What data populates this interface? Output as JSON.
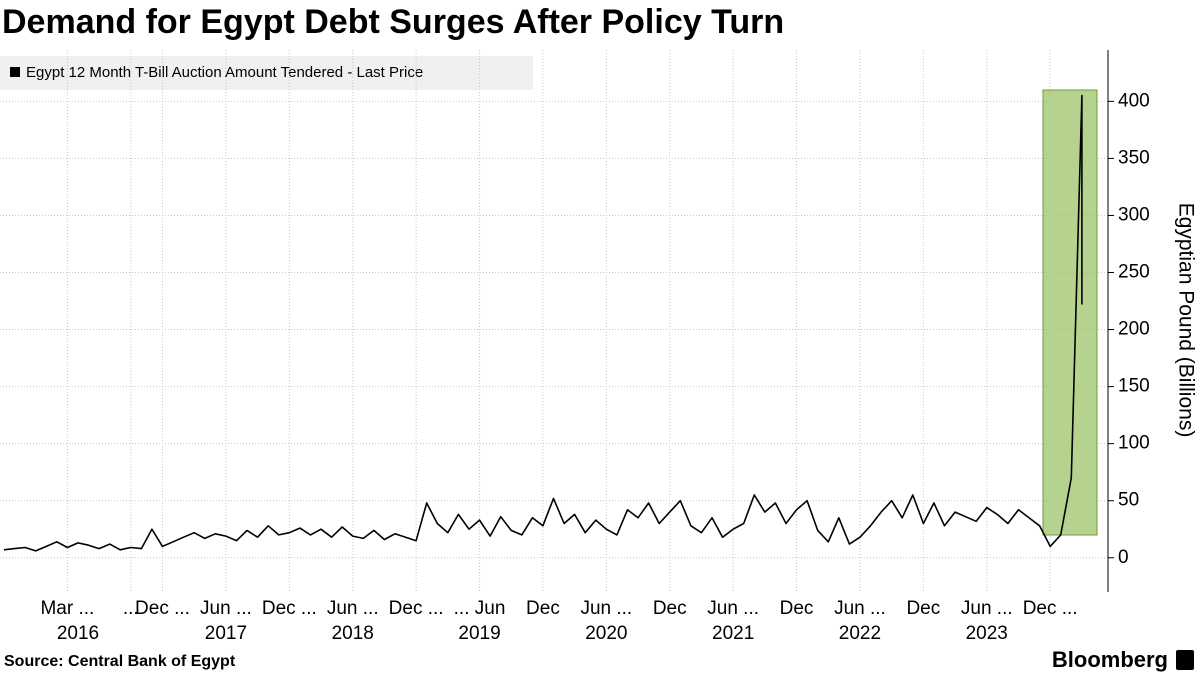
{
  "chart_data": {
    "type": "line",
    "title": "Demand for Egypt Debt Surges After Policy Turn",
    "y_label": "Egyptian Pound (Billions)",
    "source": "Source:  Central Bank of Egypt",
    "brand": "Bloomberg",
    "x": [
      "2015-09",
      "2015-10",
      "2015-11",
      "2015-12",
      "2016-01",
      "2016-02",
      "2016-03",
      "2016-04",
      "2016-05",
      "2016-06",
      "2016-07",
      "2016-08",
      "2016-09",
      "2016-10",
      "2016-11",
      "2016-12",
      "2017-01",
      "2017-02",
      "2017-03",
      "2017-04",
      "2017-05",
      "2017-06",
      "2017-07",
      "2017-08",
      "2017-09",
      "2017-10",
      "2017-11",
      "2017-12",
      "2018-01",
      "2018-02",
      "2018-03",
      "2018-04",
      "2018-05",
      "2018-06",
      "2018-07",
      "2018-08",
      "2018-09",
      "2018-10",
      "2018-11",
      "2018-12",
      "2019-01",
      "2019-02",
      "2019-03",
      "2019-04",
      "2019-05",
      "2019-06",
      "2019-07",
      "2019-08",
      "2019-09",
      "2019-10",
      "2019-11",
      "2019-12",
      "2020-01",
      "2020-02",
      "2020-03",
      "2020-04",
      "2020-05",
      "2020-06",
      "2020-07",
      "2020-08",
      "2020-09",
      "2020-10",
      "2020-11",
      "2020-12",
      "2021-01",
      "2021-02",
      "2021-03",
      "2021-04",
      "2021-05",
      "2021-06",
      "2021-07",
      "2021-08",
      "2021-09",
      "2021-10",
      "2021-11",
      "2021-12",
      "2022-01",
      "2022-02",
      "2022-03",
      "2022-04",
      "2022-05",
      "2022-06",
      "2022-07",
      "2022-08",
      "2022-09",
      "2022-10",
      "2022-11",
      "2022-12",
      "2023-01",
      "2023-02",
      "2023-03",
      "2023-04",
      "2023-05",
      "2023-06",
      "2023-07",
      "2023-08",
      "2023-09",
      "2023-10",
      "2023-11",
      "2023-12",
      "2024-01",
      "2024-02",
      "2024-03",
      "2024-03"
    ],
    "series": [
      {
        "name": "Egypt 12 Month T-Bill Auction Amount Tendered - Last Price",
        "color": "#000000",
        "values": [
          7,
          8,
          9,
          6,
          10,
          14,
          9,
          13,
          11,
          8,
          12,
          7,
          9,
          8,
          25,
          10,
          14,
          18,
          22,
          17,
          21,
          19,
          15,
          24,
          18,
          28,
          20,
          22,
          26,
          20,
          25,
          18,
          27,
          19,
          17,
          24,
          16,
          21,
          18,
          15,
          48,
          30,
          22,
          38,
          25,
          33,
          19,
          36,
          24,
          20,
          35,
          28,
          52,
          30,
          38,
          22,
          33,
          25,
          20,
          42,
          35,
          48,
          30,
          40,
          50,
          28,
          22,
          35,
          18,
          25,
          30,
          55,
          40,
          48,
          30,
          42,
          50,
          24,
          14,
          35,
          12,
          18,
          28,
          40,
          50,
          35,
          55,
          30,
          48,
          28,
          40,
          36,
          32,
          44,
          38,
          30,
          42,
          35,
          28,
          10,
          20,
          70,
          405,
          222
        ]
      }
    ],
    "xlim": [
      "2015-09",
      "2024-05"
    ],
    "xticks": [
      {
        "value": "2016-03",
        "label": "Mar ..."
      },
      {
        "value": "2016-09",
        "label": "..."
      },
      {
        "value": "2016-12",
        "label": "Dec ..."
      },
      {
        "value": "2017-06",
        "label": "Jun ..."
      },
      {
        "value": "2017-12",
        "label": "Dec ..."
      },
      {
        "value": "2018-06",
        "label": "Jun ..."
      },
      {
        "value": "2018-12",
        "label": "Dec ..."
      },
      {
        "value": "2019-06",
        "label": "... Jun"
      },
      {
        "value": "2019-12",
        "label": "Dec"
      },
      {
        "value": "2020-06",
        "label": "Jun ..."
      },
      {
        "value": "2020-12",
        "label": "Dec"
      },
      {
        "value": "2021-06",
        "label": "Jun ..."
      },
      {
        "value": "2021-12",
        "label": "Dec"
      },
      {
        "value": "2022-06",
        "label": "Jun ..."
      },
      {
        "value": "2022-12",
        "label": "Dec"
      },
      {
        "value": "2023-06",
        "label": "Jun ..."
      },
      {
        "value": "2023-12",
        "label": "Dec ..."
      }
    ],
    "x_groups": [
      {
        "value": "2016-04",
        "label": "2016"
      },
      {
        "value": "2017-06",
        "label": "2017"
      },
      {
        "value": "2018-06",
        "label": "2018"
      },
      {
        "value": "2019-06",
        "label": "2019"
      },
      {
        "value": "2020-06",
        "label": "2020"
      },
      {
        "value": "2021-06",
        "label": "2021"
      },
      {
        "value": "2022-06",
        "label": "2022"
      },
      {
        "value": "2023-06",
        "label": "2023"
      }
    ],
    "ylim": [
      -30,
      445
    ],
    "yticks": [
      0,
      50,
      100,
      150,
      200,
      250,
      300,
      350,
      400
    ],
    "grid": true
  }
}
